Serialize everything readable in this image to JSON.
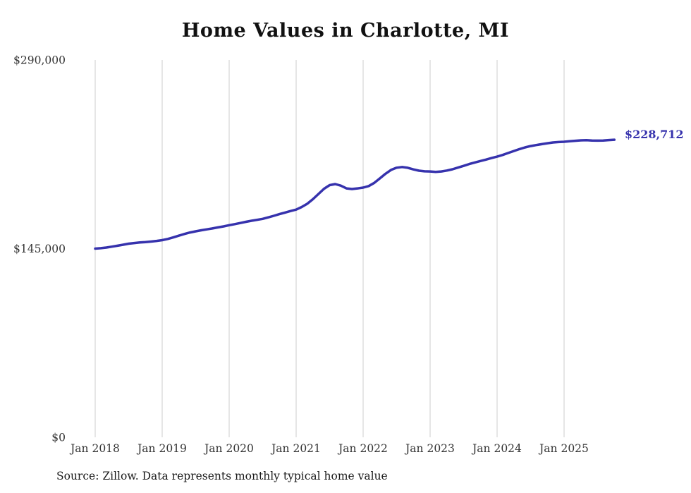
{
  "chart": {
    "title": "Home Values in Charlotte, MI",
    "end_label": "$228,712",
    "source": "Source: Zillow. Data represents monthly typical home value",
    "line_color": "#3632ad",
    "grid_color": "#cccccc",
    "tick_color": "#333333"
  },
  "chart_data": {
    "type": "line",
    "title": "Home Values in Charlotte, MI",
    "xlabel": "",
    "ylabel": "",
    "x_start": "2018-01",
    "x_end": "2025-10",
    "x_interval": "monthly",
    "x_tick_labels": [
      "Jan 2018",
      "Jan 2019",
      "Jan 2020",
      "Jan 2021",
      "Jan 2022",
      "Jan 2023",
      "Jan 2024",
      "Jan 2025"
    ],
    "y_ticks": [
      0,
      145000,
      290000
    ],
    "y_tick_labels": [
      "$0",
      "$145,000",
      "$290,000"
    ],
    "ylim": [
      0,
      290000
    ],
    "grid": "vertical-only",
    "legend": "none",
    "final_value": 228712,
    "final_value_label": "$228,712",
    "series": [
      {
        "name": "Typical home value",
        "values": [
          145000,
          145300,
          145800,
          146500,
          147200,
          148000,
          148800,
          149300,
          149700,
          150000,
          150400,
          150900,
          151500,
          152400,
          153600,
          155000,
          156300,
          157400,
          158300,
          159100,
          159800,
          160500,
          161300,
          162100,
          163000,
          163800,
          164700,
          165600,
          166400,
          167100,
          167900,
          169000,
          170200,
          171500,
          172700,
          173900,
          175000,
          177000,
          179500,
          183000,
          187000,
          191000,
          193800,
          194600,
          193400,
          191300,
          190800,
          191300,
          191900,
          193100,
          195500,
          199000,
          202500,
          205500,
          207200,
          207700,
          207100,
          205900,
          204900,
          204400,
          204300,
          204000,
          204300,
          205000,
          206000,
          207300,
          208600,
          210000,
          211200,
          212300,
          213400,
          214600,
          215700,
          217000,
          218500,
          220000,
          221500,
          222800,
          223800,
          224600,
          225300,
          226000,
          226600,
          226900,
          227100,
          227500,
          227900,
          228200,
          228300,
          228100,
          228000,
          228100,
          228400,
          228712
        ]
      }
    ]
  }
}
